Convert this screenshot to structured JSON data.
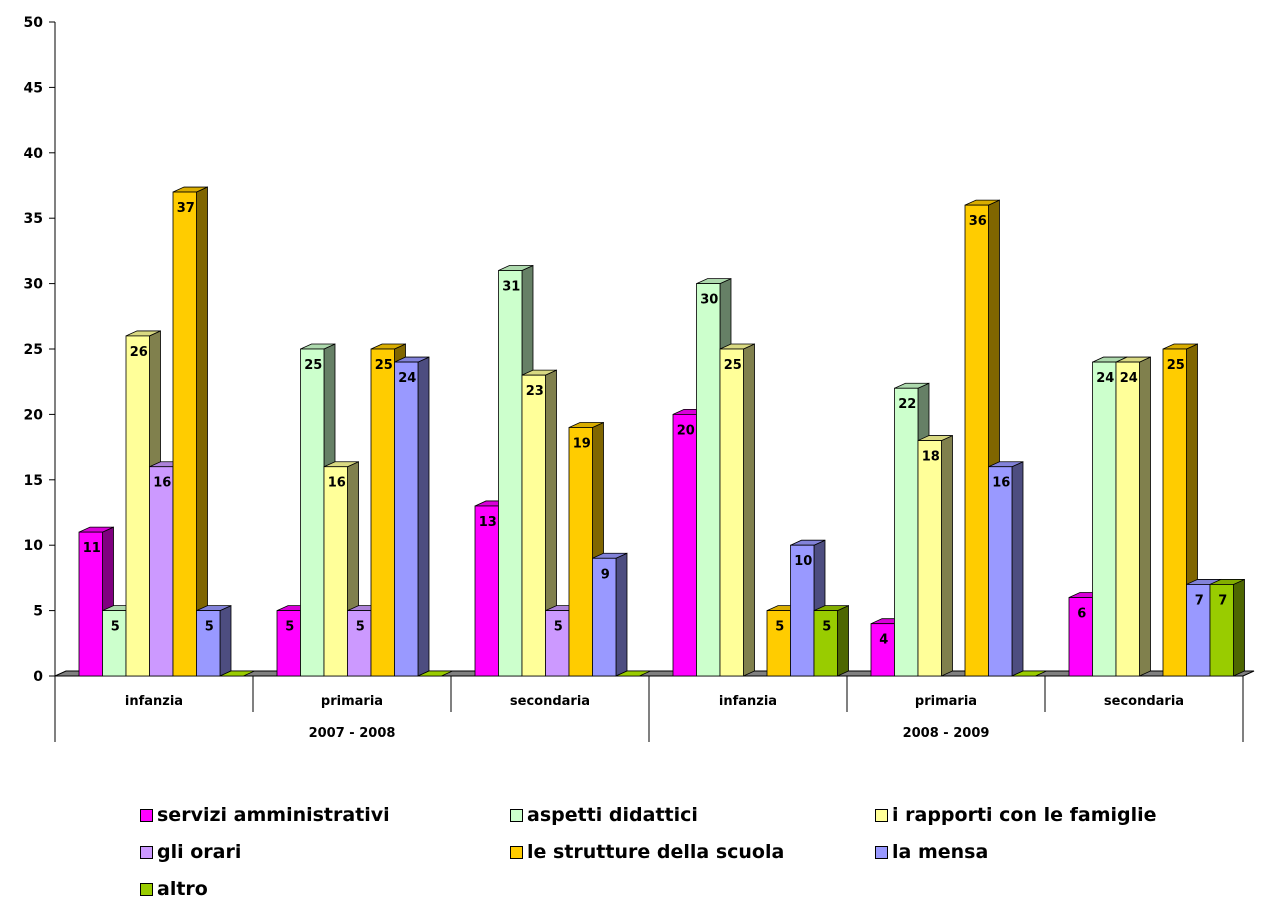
{
  "chart_data": {
    "type": "bar",
    "title": "",
    "ylim": [
      0,
      50
    ],
    "yticks": [
      0,
      5,
      10,
      15,
      20,
      25,
      30,
      35,
      40,
      45,
      50
    ],
    "groups": [
      {
        "label": "2007 - 2008",
        "categories": [
          "infanzia",
          "primaria",
          "secondaria"
        ]
      },
      {
        "label": "2008 - 2009",
        "categories": [
          "infanzia",
          "primaria",
          "secondaria"
        ]
      }
    ],
    "categories": [
      "infanzia",
      "primaria",
      "secondaria",
      "infanzia",
      "primaria",
      "secondaria"
    ],
    "series": [
      {
        "name": "servizi amministrativi",
        "color": "#FF00FF",
        "values": [
          11,
          5,
          13,
          20,
          4,
          6
        ]
      },
      {
        "name": "aspetti didattici",
        "color": "#CCFFCC",
        "values": [
          5,
          25,
          31,
          30,
          22,
          24
        ]
      },
      {
        "name": "i rapporti con le famiglie",
        "color": "#FFFF99",
        "values": [
          26,
          16,
          23,
          25,
          18,
          24
        ]
      },
      {
        "name": "gli orari",
        "color": "#CC99FF",
        "values": [
          16,
          5,
          5,
          null,
          null,
          null
        ]
      },
      {
        "name": "le strutture della scuola",
        "color": "#FFCC00",
        "values": [
          37,
          25,
          19,
          5,
          36,
          25
        ]
      },
      {
        "name": "la mensa",
        "color": "#9999FF",
        "values": [
          5,
          24,
          9,
          10,
          16,
          7
        ]
      },
      {
        "name": "altro",
        "color": "#99CC00",
        "values": [
          null,
          null,
          null,
          5,
          null,
          7
        ]
      }
    ],
    "legend_position": "bottom",
    "grid": false,
    "three_d": true
  }
}
